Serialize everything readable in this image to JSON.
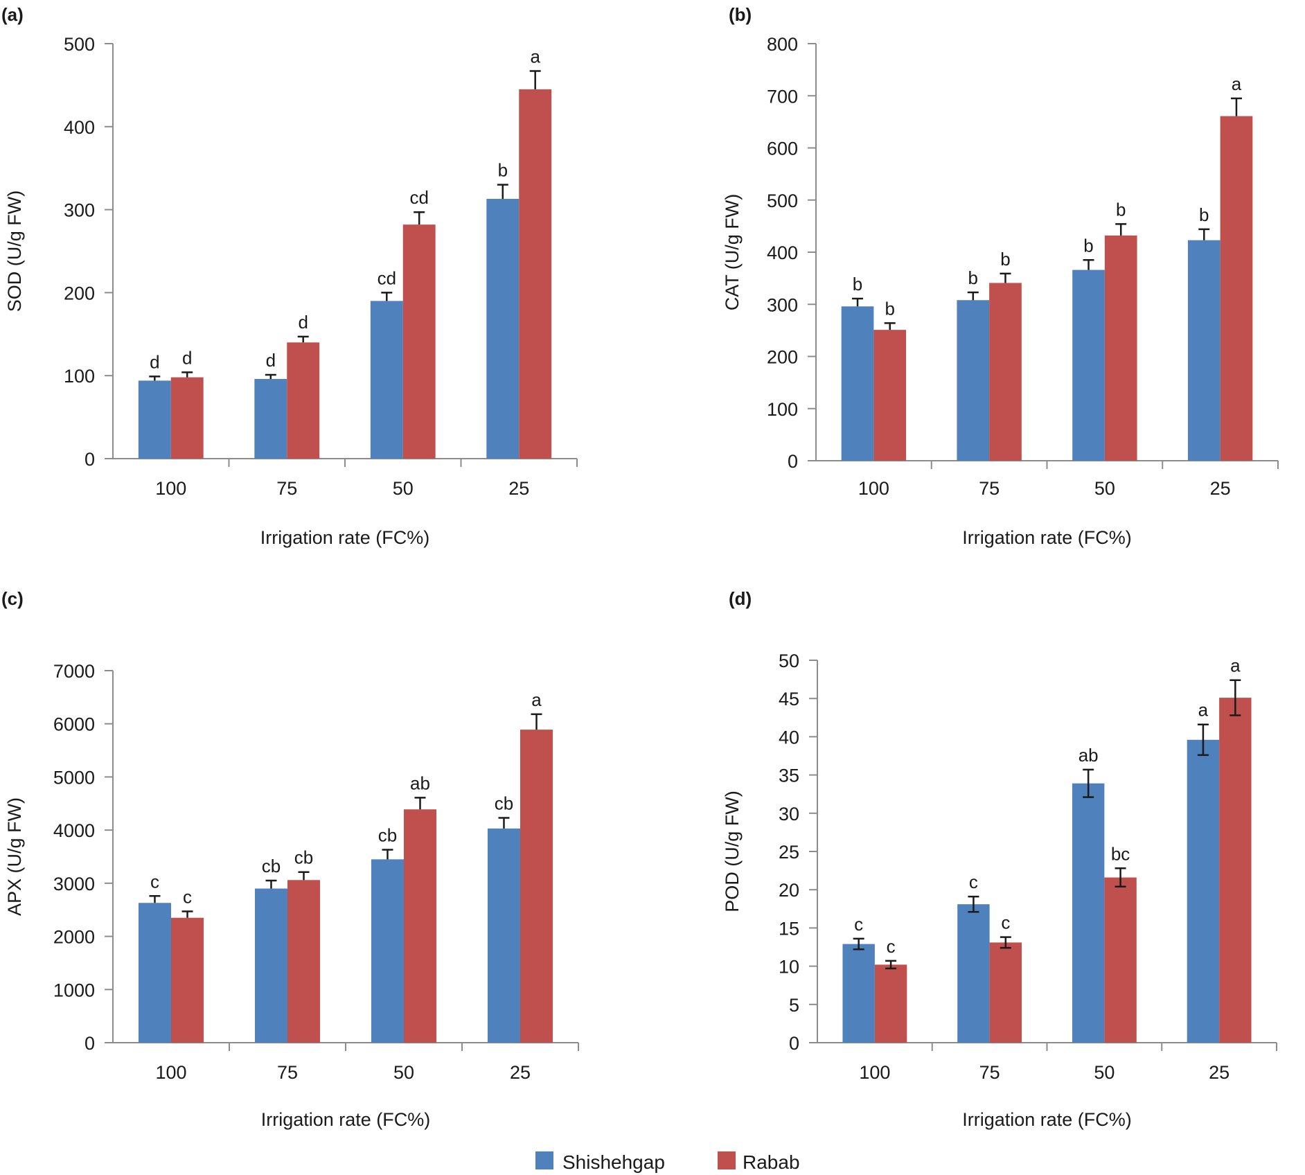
{
  "figure_title": "",
  "legend": [
    {
      "name": "Shishehgap",
      "color": "#4f81bd"
    },
    {
      "name": "Rabab",
      "color": "#c0504d"
    }
  ],
  "chart_data": [
    {
      "panel": "(a)",
      "type": "bar",
      "xlabel": "Irrigation rate (FC%)",
      "ylabel": "SOD (U/g FW)",
      "categories": [
        "100",
        "75",
        "50",
        "25"
      ],
      "ylim": [
        0,
        500
      ],
      "yticks": [
        0,
        100,
        200,
        300,
        400,
        500
      ],
      "grid": false,
      "error_style": "upper",
      "series": [
        {
          "name": "Shishehgap",
          "values": [
            94,
            96,
            190,
            313
          ],
          "errors": [
            5,
            5,
            10,
            17
          ],
          "labels": [
            "d",
            "d",
            "cd",
            "b"
          ]
        },
        {
          "name": "Rabab",
          "values": [
            98,
            140,
            282,
            445
          ],
          "errors": [
            6,
            7,
            15,
            22
          ],
          "labels": [
            "d",
            "d",
            "cd",
            "a"
          ]
        }
      ]
    },
    {
      "panel": "(b)",
      "type": "bar",
      "xlabel": "Irrigation rate (FC%)",
      "ylabel": "CAT (U/g FW)",
      "categories": [
        "100",
        "75",
        "50",
        "25"
      ],
      "ylim": [
        0,
        800
      ],
      "yticks": [
        0,
        100,
        200,
        300,
        400,
        500,
        600,
        700,
        800
      ],
      "grid": false,
      "error_style": "upper",
      "series": [
        {
          "name": "Shishehgap",
          "values": [
            296,
            308,
            366,
            423
          ],
          "errors": [
            15,
            15,
            19,
            21
          ],
          "labels": [
            "b",
            "b",
            "b",
            "b"
          ]
        },
        {
          "name": "Rabab",
          "values": [
            251,
            341,
            432,
            661
          ],
          "errors": [
            13,
            18,
            22,
            34
          ],
          "labels": [
            "b",
            "b",
            "b",
            "a"
          ]
        }
      ]
    },
    {
      "panel": "(c)",
      "type": "bar",
      "xlabel": "Irrigation rate (FC%)",
      "ylabel": "APX (U/g FW)",
      "categories": [
        "100",
        "75",
        "50",
        "25"
      ],
      "ylim": [
        0,
        7000
      ],
      "yticks": [
        0,
        1000,
        2000,
        3000,
        4000,
        5000,
        6000,
        7000
      ],
      "grid": false,
      "error_style": "upper",
      "series": [
        {
          "name": "Shishehgap",
          "values": [
            2630,
            2900,
            3450,
            4030
          ],
          "errors": [
            130,
            150,
            180,
            200
          ],
          "labels": [
            "c",
            "cb",
            "cb",
            "cb"
          ]
        },
        {
          "name": "Rabab",
          "values": [
            2350,
            3060,
            4390,
            5890
          ],
          "errors": [
            120,
            150,
            220,
            290
          ],
          "labels": [
            "c",
            "cb",
            "ab",
            "a"
          ]
        }
      ]
    },
    {
      "panel": "(d)",
      "type": "bar",
      "xlabel": "Irrigation rate (FC%)",
      "ylabel": "POD  (U/g FW)",
      "categories": [
        "100",
        "75",
        "50",
        "25"
      ],
      "ylim": [
        0,
        50
      ],
      "yticks": [
        0,
        5,
        10,
        15,
        20,
        25,
        30,
        35,
        40,
        45,
        50
      ],
      "grid": false,
      "error_style": "both",
      "series": [
        {
          "name": "Shishehgap",
          "values": [
            12.9,
            18.1,
            33.9,
            39.6
          ],
          "errors": [
            0.7,
            1.0,
            1.8,
            2.0
          ],
          "labels": [
            "c",
            "c",
            "ab",
            "a"
          ]
        },
        {
          "name": "Rabab",
          "values": [
            10.2,
            13.1,
            21.6,
            45.1
          ],
          "errors": [
            0.5,
            0.7,
            1.2,
            2.3
          ],
          "labels": [
            "c",
            "c",
            "bc",
            "a"
          ]
        }
      ]
    }
  ]
}
